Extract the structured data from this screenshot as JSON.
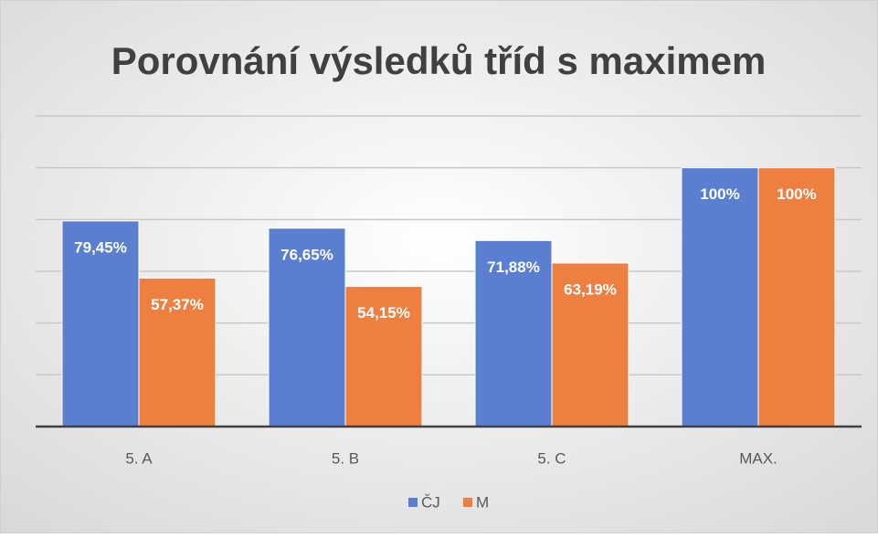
{
  "chart_data": {
    "type": "bar",
    "title": "Porovnání výsledků tříd s maximem",
    "categories": [
      "5. A",
      "5. B",
      "5. C",
      "MAX."
    ],
    "series": [
      {
        "name": "ČJ",
        "color": "#5b7fd0",
        "values": [
          79.45,
          76.65,
          71.88,
          100
        ],
        "value_labels": [
          "79,45%",
          "76,65%",
          "71,88%",
          "100%"
        ]
      },
      {
        "name": "M",
        "color": "#ed8040",
        "values": [
          57.37,
          54.15,
          63.19,
          100
        ],
        "value_labels": [
          "57,37%",
          "54,15%",
          "63,19%",
          "100%"
        ]
      }
    ],
    "ylim": [
      0,
      120
    ],
    "yticks": [
      0,
      20,
      40,
      60,
      80,
      100,
      120
    ],
    "grid": true,
    "legend": "bottom"
  }
}
